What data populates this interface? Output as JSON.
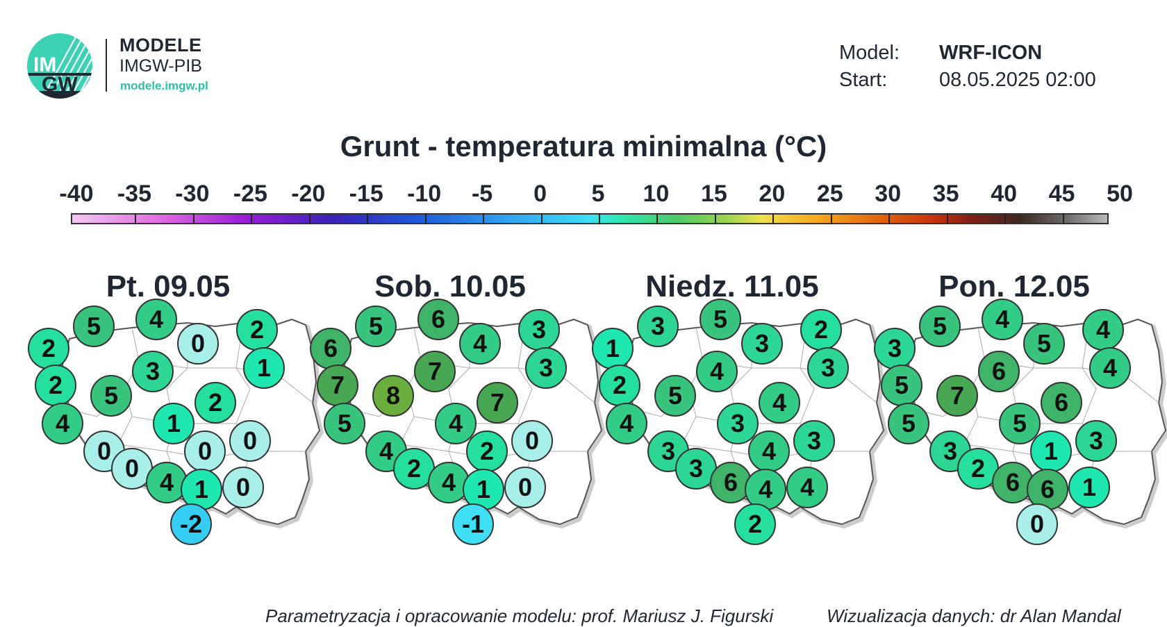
{
  "brand": {
    "logo_text_top": "IM",
    "logo_text_bottom": "GW",
    "title": "MODELE",
    "subtitle": "IMGW-PIB",
    "url": "modele.imgw.pl"
  },
  "meta": {
    "model_label": "Model:",
    "model_value": "WRF-ICON",
    "start_label": "Start:",
    "start_value": "08.05.2025 02:00"
  },
  "title": "Grunt - temperatura minimalna (°C)",
  "scale": {
    "ticks": [
      "-40",
      "-35",
      "-30",
      "-25",
      "-20",
      "-15",
      "-10",
      "-5",
      "0",
      "5",
      "10",
      "15",
      "20",
      "25",
      "30",
      "35",
      "40",
      "45",
      "50"
    ],
    "min": -40,
    "max": 50
  },
  "maps": [
    {
      "day": "Pt. 09.05",
      "values": [
        2,
        5,
        4,
        0,
        2,
        1,
        3,
        2,
        5,
        4,
        2,
        1,
        0,
        0,
        0,
        0,
        4,
        1,
        0,
        -2
      ]
    },
    {
      "day": "Sob. 10.05",
      "values": [
        6,
        5,
        6,
        4,
        3,
        3,
        7,
        7,
        8,
        5,
        7,
        4,
        4,
        2,
        0,
        2,
        4,
        1,
        0,
        -1
      ]
    },
    {
      "day": "Niedz. 11.05",
      "values": [
        1,
        3,
        5,
        3,
        2,
        3,
        4,
        2,
        5,
        4,
        4,
        3,
        3,
        4,
        3,
        3,
        6,
        4,
        4,
        2
      ]
    },
    {
      "day": "Pon. 12.05",
      "values": [
        3,
        5,
        4,
        5,
        4,
        4,
        6,
        5,
        7,
        5,
        6,
        5,
        3,
        1,
        3,
        2,
        6,
        6,
        1,
        0
      ]
    }
  ],
  "footer": {
    "left": "Parametryzacja i opracowanie modelu: prof. Mariusz J. Figurski",
    "right": "Wizualizacja danych: dr Alan Mandal"
  }
}
